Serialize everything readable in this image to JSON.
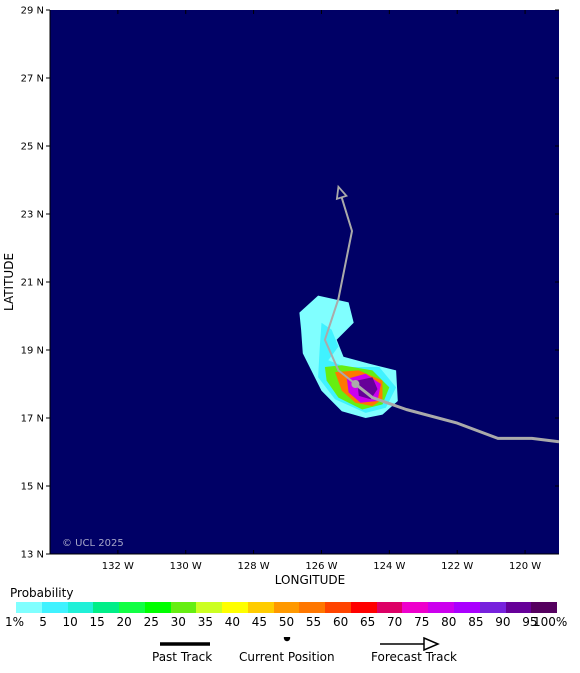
{
  "map": {
    "background_color": "#000066",
    "axis_color": "#000000",
    "xlabel": "LONGITUDE",
    "ylabel": "LATITUDE",
    "x_ticks": [
      "132 W",
      "130 W",
      "128 W",
      "126 W",
      "124 W",
      "122 W",
      "120 W"
    ],
    "y_ticks": [
      "29 N",
      "27 N",
      "25 N",
      "23 N",
      "21 N",
      "19 N",
      "17 N",
      "15 N",
      "13 N"
    ],
    "xlim": [
      -134,
      -119
    ],
    "ylim": [
      13,
      29
    ],
    "copyright": "© UCL 2025"
  },
  "chart_data": {
    "type": "heatmap",
    "title": "",
    "xlabel": "LONGITUDE",
    "ylabel": "LATITUDE",
    "x_tick_labels": [
      "132 W",
      "130 W",
      "128 W",
      "126 W",
      "124 W",
      "122 W",
      "120 W"
    ],
    "y_tick_labels": [
      "29 N",
      "27 N",
      "25 N",
      "23 N",
      "21 N",
      "19 N",
      "17 N",
      "15 N",
      "13 N"
    ],
    "x_range": [
      -134,
      -119
    ],
    "y_range": [
      13,
      29
    ],
    "past_track": {
      "lon": [
        -119.0,
        -119.8,
        -120.8,
        -122.0,
        -123.5,
        -124.5,
        -125.0
      ],
      "lat": [
        16.3,
        16.4,
        16.4,
        16.85,
        17.25,
        17.6,
        18.0
      ]
    },
    "current_position": {
      "lon": -125.0,
      "lat": 18.0
    },
    "forecast_track": {
      "lon": [
        -125.0,
        -125.5,
        -125.9,
        -125.5,
        -125.1,
        -125.5
      ],
      "lat": [
        18.0,
        18.4,
        19.3,
        20.5,
        22.5,
        23.8
      ]
    },
    "probability_bins": [
      "1%",
      "5",
      "10",
      "15",
      "20",
      "25",
      "30",
      "35",
      "40",
      "45",
      "50",
      "55",
      "60",
      "65",
      "70",
      "75",
      "80",
      "85",
      "90",
      "95",
      "100%"
    ],
    "probability_colors": [
      "#80ffff",
      "#40f2ff",
      "#20f0d8",
      "#00ee88",
      "#11ff44",
      "#00ff00",
      "#66ee11",
      "#ccff22",
      "#ffff00",
      "#ffcc00",
      "#ff9900",
      "#ff7700",
      "#ff4400",
      "#ff0000",
      "#dd0066",
      "#ee00cc",
      "#cc00ee",
      "#aa00ff",
      "#7722dd",
      "#660099",
      "#55005f"
    ],
    "swath": [
      {
        "bin": "1%",
        "lon": [
          -126.65,
          -126.1,
          -125.2,
          -125.05,
          -125.55,
          -125.35,
          -124.6,
          -123.8,
          -123.75,
          -124.2,
          -124.7,
          -125.4,
          -126.0,
          -126.55,
          -126.6
        ],
        "lat": [
          20.1,
          20.6,
          20.4,
          19.8,
          19.3,
          18.8,
          18.6,
          18.4,
          17.5,
          17.1,
          17.0,
          17.2,
          17.8,
          18.9,
          19.6
        ]
      },
      {
        "bin": "5",
        "lon": [
          -126.0,
          -125.7,
          -125.5,
          -125.8,
          -125.3,
          -124.3,
          -123.8,
          -124.1,
          -124.7,
          -125.6,
          -126.1,
          -126.05
        ],
        "lat": [
          19.8,
          19.6,
          19.1,
          18.7,
          18.5,
          18.5,
          17.9,
          17.3,
          17.15,
          17.55,
          18.2,
          19.1
        ]
      },
      {
        "bin": "30",
        "lon": [
          -125.9,
          -125.4,
          -124.5,
          -124.0,
          -124.2,
          -124.8,
          -125.5,
          -125.85
        ],
        "lat": [
          18.5,
          18.55,
          18.4,
          17.9,
          17.4,
          17.25,
          17.6,
          18.1
        ]
      },
      {
        "bin": "55",
        "lon": [
          -125.6,
          -124.9,
          -124.2,
          -124.2,
          -124.5,
          -125.0,
          -125.4
        ],
        "lat": [
          18.35,
          18.4,
          18.1,
          17.55,
          17.35,
          17.45,
          17.8
        ]
      },
      {
        "bin": "80",
        "lon": [
          -125.25,
          -124.7,
          -124.25,
          -124.35,
          -124.85,
          -125.2
        ],
        "lat": [
          18.15,
          18.3,
          18.0,
          17.5,
          17.45,
          17.75
        ]
      },
      {
        "bin": "95",
        "lon": [
          -124.95,
          -124.5,
          -124.35,
          -124.55,
          -124.9
        ],
        "lat": [
          18.1,
          18.2,
          17.85,
          17.55,
          17.65
        ]
      }
    ]
  },
  "legend": {
    "probability_title": "Probability",
    "past_track_label": "Past Track",
    "current_position_label": "Current Position",
    "forecast_track_label": "Forecast Track"
  }
}
